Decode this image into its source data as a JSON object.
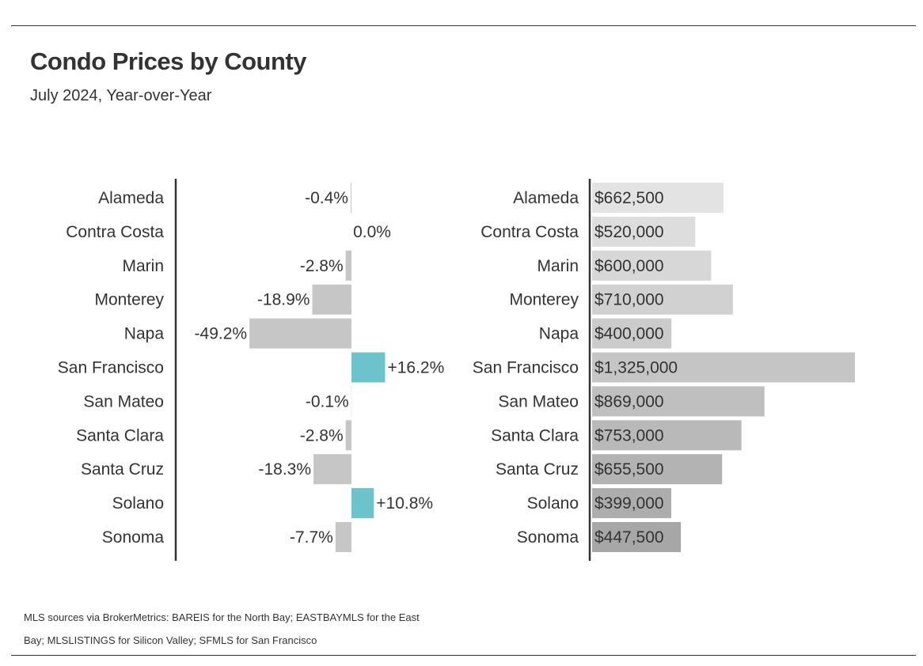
{
  "title": "Condo Prices by County",
  "subtitle": "July 2024, Year-over-Year",
  "chart_data": [
    {
      "type": "bar",
      "orientation": "horizontal",
      "categories": [
        "Alameda",
        "Contra Costa",
        "Marin",
        "Monterey",
        "Napa",
        "San Francisco",
        "San Mateo",
        "Santa Clara",
        "Santa Cruz",
        "Solano",
        "Sonoma"
      ],
      "values": [
        -0.4,
        0.0,
        -2.8,
        -18.9,
        -49.2,
        16.2,
        -0.1,
        -2.8,
        -18.3,
        10.8,
        -7.7
      ],
      "labels": [
        "-0.4%",
        "0.0%",
        "-2.8%",
        "-18.9%",
        "-49.2%",
        "+16.2%",
        "-0.1%",
        "-2.8%",
        "-18.3%",
        "+10.8%",
        "-7.7%"
      ],
      "unit": "% year-over-year change",
      "colors": {
        "positive": "#6cc3cb",
        "negative": "#c6c6c6"
      }
    },
    {
      "type": "bar",
      "orientation": "horizontal",
      "categories": [
        "Alameda",
        "Contra Costa",
        "Marin",
        "Monterey",
        "Napa",
        "San Francisco",
        "San Mateo",
        "Santa Clara",
        "Santa Cruz",
        "Solano",
        "Sonoma"
      ],
      "values": [
        662500,
        520000,
        600000,
        710000,
        400000,
        1325000,
        869000,
        753000,
        655500,
        399000,
        447500
      ],
      "labels": [
        "$662,500",
        "$520,000",
        "$600,000",
        "$710,000",
        "$400,000",
        "$1,325,000",
        "$869,000",
        "$753,000",
        "$655,500",
        "$399,000",
        "$447,500"
      ],
      "unit": "USD",
      "colors": [
        "#e3e3e3",
        "#dddddd",
        "#d7d7d7",
        "#d1d1d1",
        "#cbcbcb",
        "#c5c5c5",
        "#bfbfbf",
        "#b9b9b9",
        "#b3b3b3",
        "#adadad",
        "#a7a7a7"
      ]
    }
  ],
  "footnote": {
    "line1": "MLS sources via BrokerMetrics: BAREIS for the North Bay; EASTBAYMLS for the East",
    "line2": "Bay; MLSLISTINGS for Silicon Valley; SFMLS for San Francisco"
  }
}
